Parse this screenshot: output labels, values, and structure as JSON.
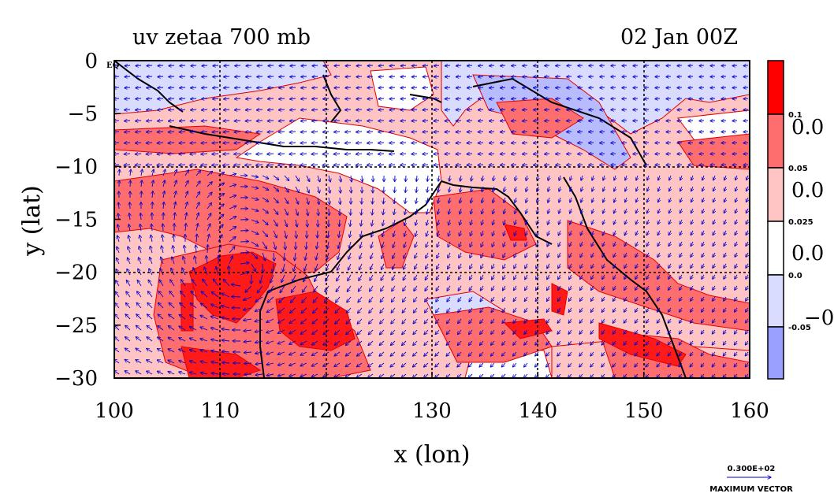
{
  "chart_data": {
    "type": "heatmap",
    "title": "uv zetaa 700 mb",
    "subtitle": "02 Jan 00Z",
    "xlabel": "x (lon)",
    "ylabel": "y (lat)",
    "xlim": [
      100,
      160
    ],
    "ylim": [
      -30,
      0
    ],
    "xticks": [
      "100",
      "110",
      "120",
      "130",
      "140",
      "150",
      "160"
    ],
    "yticks": [
      "0",
      "−5",
      "−10",
      "−15",
      "−20",
      "−25",
      "−30"
    ],
    "x_tick_values": [
      100,
      110,
      120,
      130,
      140,
      150,
      160
    ],
    "y_tick_values": [
      0,
      -5,
      -10,
      -15,
      -20,
      -25,
      -30
    ],
    "top_left_corner_label": "EQ",
    "gridlines": {
      "x": [
        110,
        120,
        130,
        140,
        150
      ],
      "y": [
        -10,
        -20
      ]
    },
    "colorbar": {
      "levels": [
        "0.1",
        "0.05",
        "0.025",
        "0.0",
        "-0.05"
      ],
      "big_labels": [
        "0.0",
        "0.0",
        "0.0",
        "−0."
      ],
      "colors": [
        "#ff0000",
        "#ff6e6e",
        "#ffc4c4",
        "#ffffff",
        "#dadcff",
        "#9aa0ff"
      ]
    },
    "max_vector": {
      "value": "0.300E+02",
      "label": "MAXIMUM VECTOR"
    },
    "colors": {
      "contour_line": "#e00000",
      "vector": "#0000cc",
      "coast": "#000000"
    }
  }
}
